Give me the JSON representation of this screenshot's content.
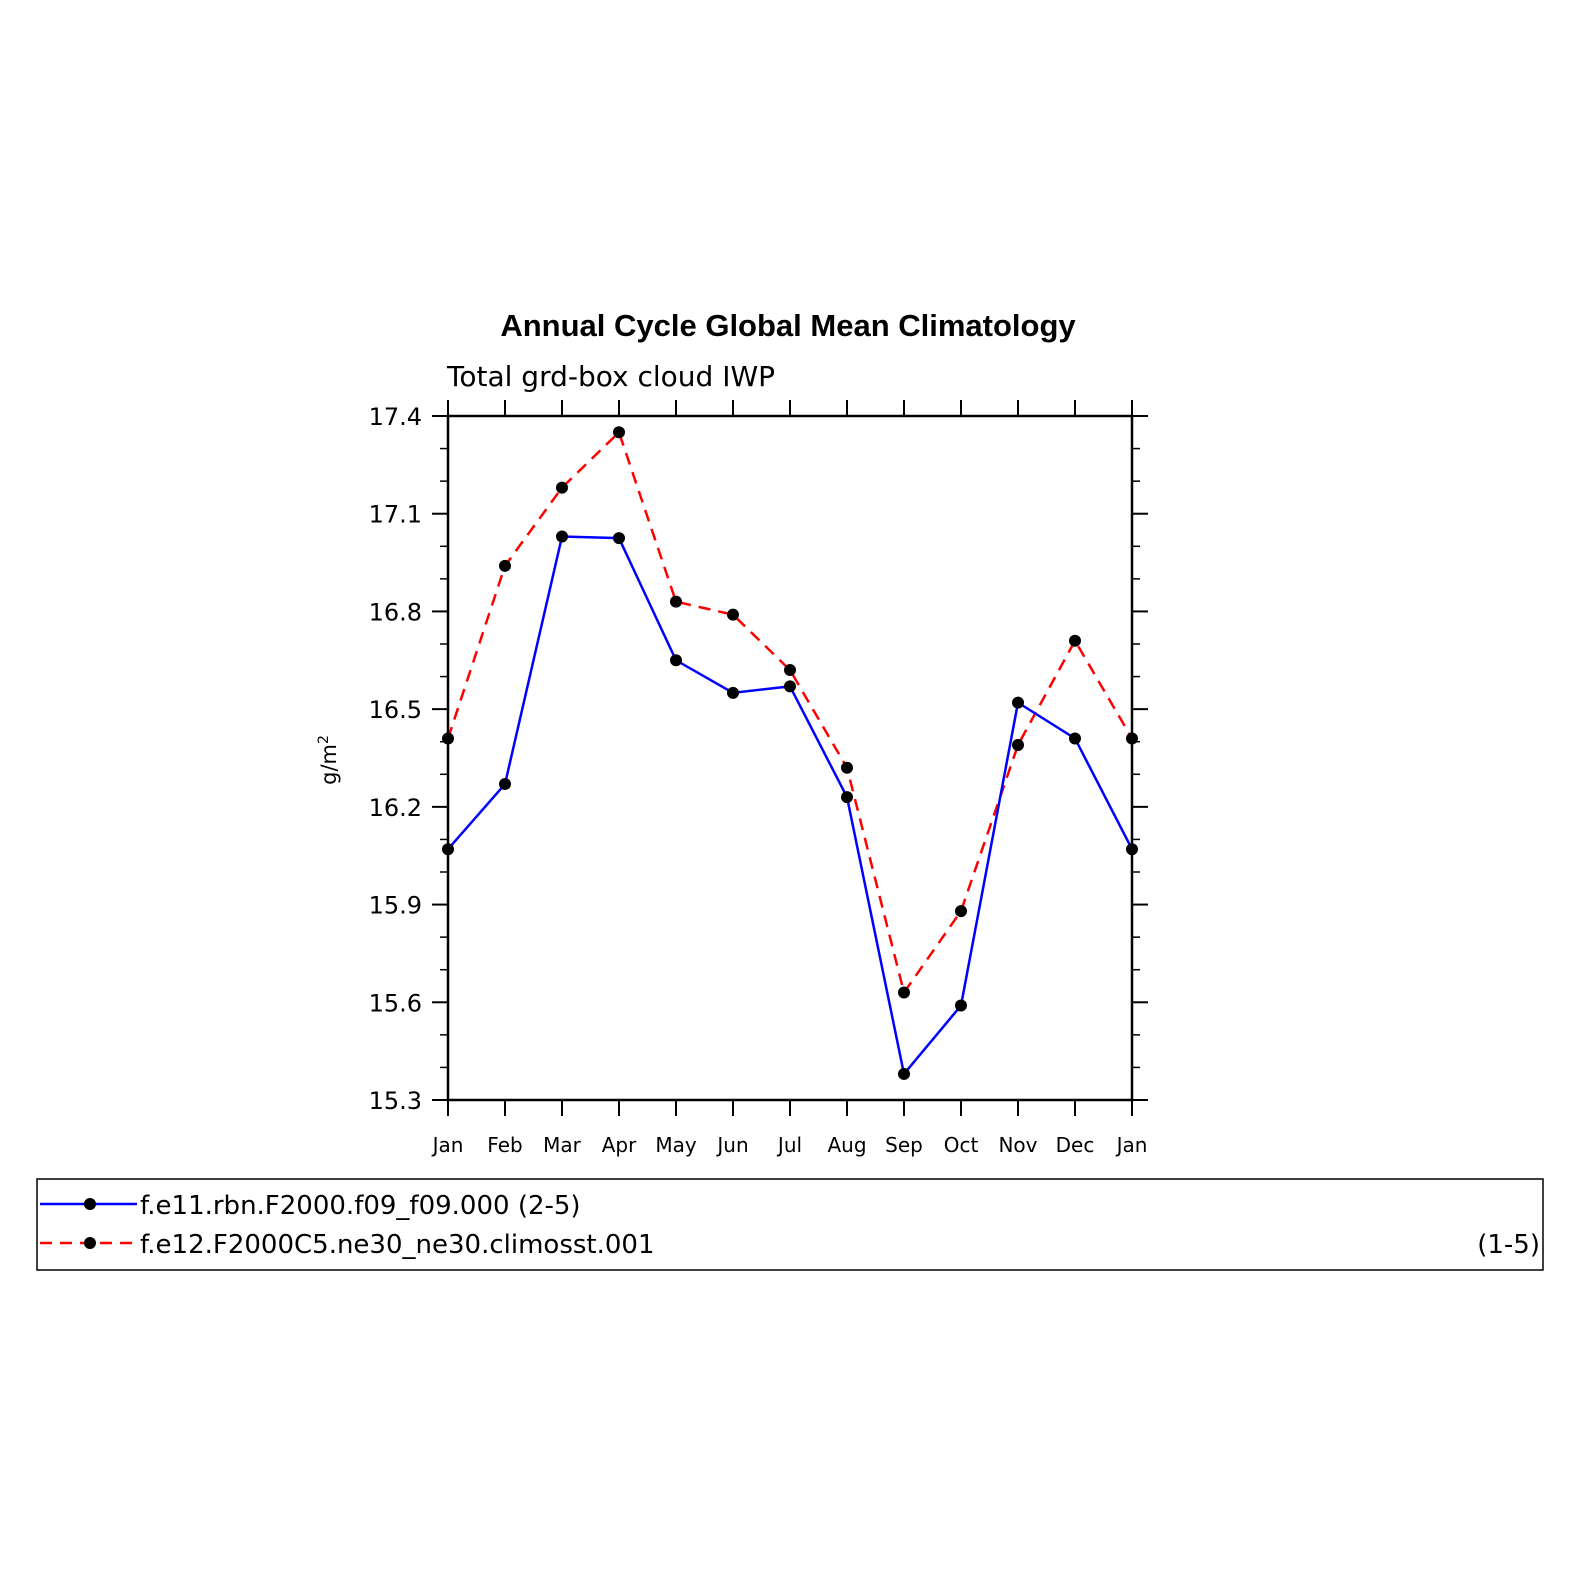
{
  "chart_data": {
    "type": "line",
    "title": "Annual Cycle Global Mean Climatology",
    "subtitle": "Total grd-box cloud IWP",
    "ylabel": "g/m",
    "ylabel_superscript": "2",
    "xlabel": "",
    "categories": [
      "Jan",
      "Feb",
      "Mar",
      "Apr",
      "May",
      "Jun",
      "Jul",
      "Aug",
      "Sep",
      "Oct",
      "Nov",
      "Dec",
      "Jan"
    ],
    "ylim": [
      15.3,
      17.4
    ],
    "yticks": [
      "17.4",
      "17.1",
      "16.8",
      "16.5",
      "16.2",
      "15.9",
      "15.6",
      "15.3"
    ],
    "grid": false,
    "legend_position": "bottom",
    "series": [
      {
        "name": "f.e11.rbn.F2000.f09_f09.000 (2-5)",
        "legend_suffix": "",
        "color": "#0000ff",
        "dashed": false,
        "values": [
          16.07,
          16.27,
          17.03,
          17.025,
          16.65,
          16.55,
          16.57,
          16.23,
          15.38,
          15.59,
          16.52,
          16.41,
          16.07
        ]
      },
      {
        "name": "f.e12.F2000C5.ne30_ne30.climosst.001",
        "legend_suffix": "(1-5)",
        "color": "#ff0000",
        "dashed": true,
        "values": [
          16.41,
          16.94,
          17.18,
          17.35,
          16.83,
          16.79,
          16.62,
          16.32,
          15.63,
          15.88,
          16.39,
          16.71,
          16.41
        ]
      }
    ]
  }
}
